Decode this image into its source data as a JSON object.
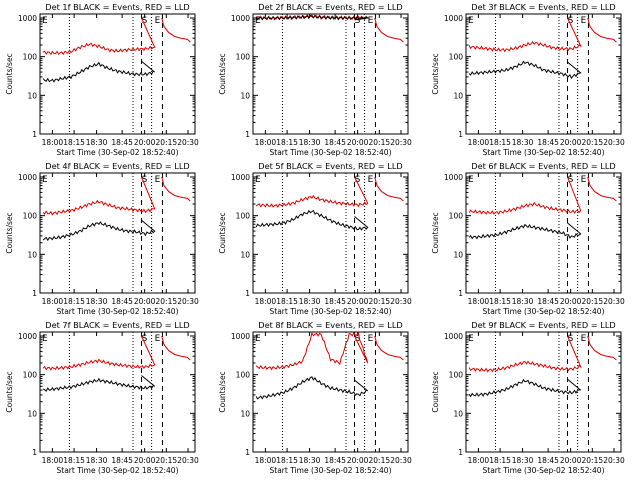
{
  "figure": {
    "panel_titles": [
      "Det 1f BLACK = Events, RED = LLD",
      "Det 2f BLACK = Events, RED = LLD",
      "Det 3f BLACK = Events, RED = LLD",
      "Det 4f BLACK = Events, RED = LLD",
      "Det 5f BLACK = Events, RED = LLD",
      "Det 6f BLACK = Events, RED = LLD",
      "Det 7f BLACK = Events, RED = LLD",
      "Det 8f BLACK = Events, RED = LLD",
      "Det 9f BLACK = Events, RED = LLD"
    ],
    "ylabel": "Counts/sec",
    "xlabel": "Start Time (30-Sep-02 18:52:40)",
    "x_ticks": [
      "18:00",
      "18:15",
      "18:30",
      "18:45",
      "20:00",
      "20:15",
      "20:30"
    ],
    "y_ticks": [
      "1",
      "10",
      "100",
      "1000"
    ],
    "markers": [
      "E",
      "S",
      "E"
    ],
    "colors": {
      "events": "#000000",
      "lld": "#e00000"
    }
  },
  "chart_data": [
    {
      "type": "line",
      "title": "Det 1f BLACK = Events, RED = LLD",
      "xlabel": "Start Time (30-Sep-02 18:52:40)",
      "ylabel": "Counts/sec",
      "yscale": "log",
      "ylim": [
        1,
        1000
      ],
      "x": [
        0.02,
        0.08,
        0.14,
        0.2,
        0.26,
        0.32,
        0.38,
        0.44,
        0.5,
        0.56,
        0.62,
        0.68,
        0.74
      ],
      "series": [
        {
          "name": "RED = LLD",
          "values": [
            130,
            125,
            125,
            135,
            175,
            210,
            185,
            150,
            140,
            150,
            155,
            160,
            175
          ]
        },
        {
          "name": "BLACK = Events",
          "values": [
            25,
            24,
            27,
            30,
            40,
            55,
            65,
            50,
            42,
            38,
            35,
            35,
            40
          ]
        }
      ]
    },
    {
      "type": "line",
      "title": "Det 2f BLACK = Events, RED = LLD",
      "xlabel": "Start Time (30-Sep-02 18:52:40)",
      "ylabel": "Counts/sec",
      "yscale": "log",
      "ylim": [
        1,
        1000
      ],
      "x": [
        0.02,
        0.08,
        0.14,
        0.2,
        0.26,
        0.32,
        0.38,
        0.44,
        0.5,
        0.56,
        0.62,
        0.68,
        0.74
      ],
      "series": [
        {
          "name": "RED = LLD",
          "values": [
            1000,
            1000,
            1000,
            1020,
            1040,
            1080,
            1120,
            1060,
            1030,
            1020,
            1010,
            1000,
            1010
          ]
        },
        {
          "name": "BLACK = Events",
          "values": [
            990,
            990,
            995,
            1005,
            1020,
            1050,
            1090,
            1040,
            1010,
            1000,
            1000,
            990,
            1000
          ]
        }
      ]
    },
    {
      "type": "line",
      "title": "Det 3f BLACK = Events, RED = LLD",
      "xlabel": "Start Time (30-Sep-02 18:52:40)",
      "ylabel": "Counts/sec",
      "yscale": "log",
      "ylim": [
        1,
        1000
      ],
      "x": [
        0.02,
        0.08,
        0.14,
        0.2,
        0.26,
        0.32,
        0.38,
        0.44,
        0.5,
        0.56,
        0.62,
        0.68,
        0.74
      ],
      "series": [
        {
          "name": "RED = LLD",
          "values": [
            180,
            170,
            160,
            150,
            150,
            165,
            200,
            230,
            200,
            170,
            160,
            160,
            190
          ]
        },
        {
          "name": "BLACK = Events",
          "values": [
            36,
            38,
            40,
            42,
            45,
            55,
            72,
            60,
            45,
            40,
            36,
            30,
            38
          ]
        }
      ]
    },
    {
      "type": "line",
      "title": "Det 4f BLACK = Events, RED = LLD",
      "xlabel": "Start Time (30-Sep-02 18:52:40)",
      "ylabel": "Counts/sec",
      "yscale": "log",
      "ylim": [
        1,
        1000
      ],
      "x": [
        0.02,
        0.08,
        0.14,
        0.2,
        0.26,
        0.32,
        0.38,
        0.44,
        0.5,
        0.56,
        0.62,
        0.68,
        0.74
      ],
      "series": [
        {
          "name": "RED = LLD",
          "values": [
            120,
            115,
            125,
            135,
            160,
            200,
            230,
            190,
            160,
            150,
            140,
            130,
            150
          ]
        },
        {
          "name": "BLACK = Events",
          "values": [
            25,
            26,
            28,
            32,
            40,
            55,
            65,
            55,
            45,
            40,
            38,
            34,
            40
          ]
        }
      ]
    },
    {
      "type": "line",
      "title": "Det 5f BLACK = Events, RED = LLD",
      "xlabel": "Start Time (30-Sep-02 18:52:40)",
      "ylabel": "Counts/sec",
      "yscale": "log",
      "ylim": [
        1,
        1000
      ],
      "x": [
        0.02,
        0.08,
        0.14,
        0.2,
        0.26,
        0.32,
        0.38,
        0.44,
        0.5,
        0.56,
        0.62,
        0.68,
        0.74
      ],
      "series": [
        {
          "name": "RED = LLD",
          "values": [
            190,
            185,
            180,
            190,
            210,
            260,
            310,
            260,
            230,
            210,
            200,
            190,
            210
          ]
        },
        {
          "name": "BLACK = Events",
          "values": [
            55,
            58,
            60,
            65,
            80,
            110,
            130,
            100,
            75,
            60,
            52,
            45,
            50
          ]
        }
      ]
    },
    {
      "type": "line",
      "title": "Det 6f BLACK = Events, RED = LLD",
      "xlabel": "Start Time (30-Sep-02 18:52:40)",
      "ylabel": "Counts/sec",
      "yscale": "log",
      "ylim": [
        1,
        1000
      ],
      "x": [
        0.02,
        0.08,
        0.14,
        0.2,
        0.26,
        0.32,
        0.38,
        0.44,
        0.5,
        0.56,
        0.62,
        0.68,
        0.74
      ],
      "series": [
        {
          "name": "RED = LLD",
          "values": [
            130,
            125,
            120,
            120,
            130,
            150,
            180,
            200,
            170,
            150,
            140,
            125,
            135
          ]
        },
        {
          "name": "BLACK = Events",
          "values": [
            28,
            28,
            30,
            32,
            38,
            46,
            55,
            50,
            45,
            40,
            36,
            28,
            34
          ]
        }
      ]
    },
    {
      "type": "line",
      "title": "Det 7f BLACK = Events, RED = LLD",
      "xlabel": "Start Time (30-Sep-02 18:52:40)",
      "ylabel": "Counts/sec",
      "yscale": "log",
      "ylim": [
        1,
        1000
      ],
      "x": [
        0.02,
        0.08,
        0.14,
        0.2,
        0.26,
        0.32,
        0.38,
        0.44,
        0.5,
        0.56,
        0.62,
        0.68,
        0.74
      ],
      "series": [
        {
          "name": "RED = LLD",
          "values": [
            150,
            145,
            150,
            160,
            180,
            210,
            230,
            200,
            180,
            170,
            160,
            160,
            180
          ]
        },
        {
          "name": "BLACK = Events",
          "values": [
            40,
            42,
            45,
            48,
            55,
            65,
            72,
            65,
            58,
            52,
            48,
            45,
            50
          ]
        }
      ]
    },
    {
      "type": "line",
      "title": "Det 8f BLACK = Events, RED = LLD",
      "xlabel": "Start Time (30-Sep-02 18:52:40)",
      "ylabel": "Counts/sec",
      "yscale": "log",
      "ylim": [
        1,
        1000
      ],
      "x": [
        0.02,
        0.08,
        0.14,
        0.2,
        0.26,
        0.32,
        0.38,
        0.44,
        0.5,
        0.56,
        0.62,
        0.68,
        0.74
      ],
      "series": [
        {
          "name": "RED = LLD",
          "values": [
            160,
            150,
            150,
            160,
            180,
            220,
            1100,
            1100,
            250,
            200,
            1100,
            1100,
            200
          ]
        },
        {
          "name": "BLACK = Events",
          "values": [
            25,
            27,
            30,
            35,
            45,
            65,
            85,
            60,
            45,
            40,
            36,
            30,
            38
          ]
        }
      ]
    },
    {
      "type": "line",
      "title": "Det 9f BLACK = Events, RED = LLD",
      "xlabel": "Start Time (30-Sep-02 18:52:40)",
      "ylabel": "Counts/sec",
      "yscale": "log",
      "ylim": [
        1,
        1000
      ],
      "x": [
        0.02,
        0.08,
        0.14,
        0.2,
        0.26,
        0.32,
        0.38,
        0.44,
        0.5,
        0.56,
        0.62,
        0.68,
        0.74
      ],
      "series": [
        {
          "name": "RED = LLD",
          "values": [
            140,
            135,
            130,
            135,
            150,
            180,
            210,
            190,
            170,
            150,
            140,
            140,
            160
          ]
        },
        {
          "name": "BLACK = Events",
          "values": [
            30,
            30,
            32,
            36,
            42,
            55,
            70,
            58,
            45,
            40,
            36,
            34,
            40
          ]
        }
      ]
    }
  ]
}
